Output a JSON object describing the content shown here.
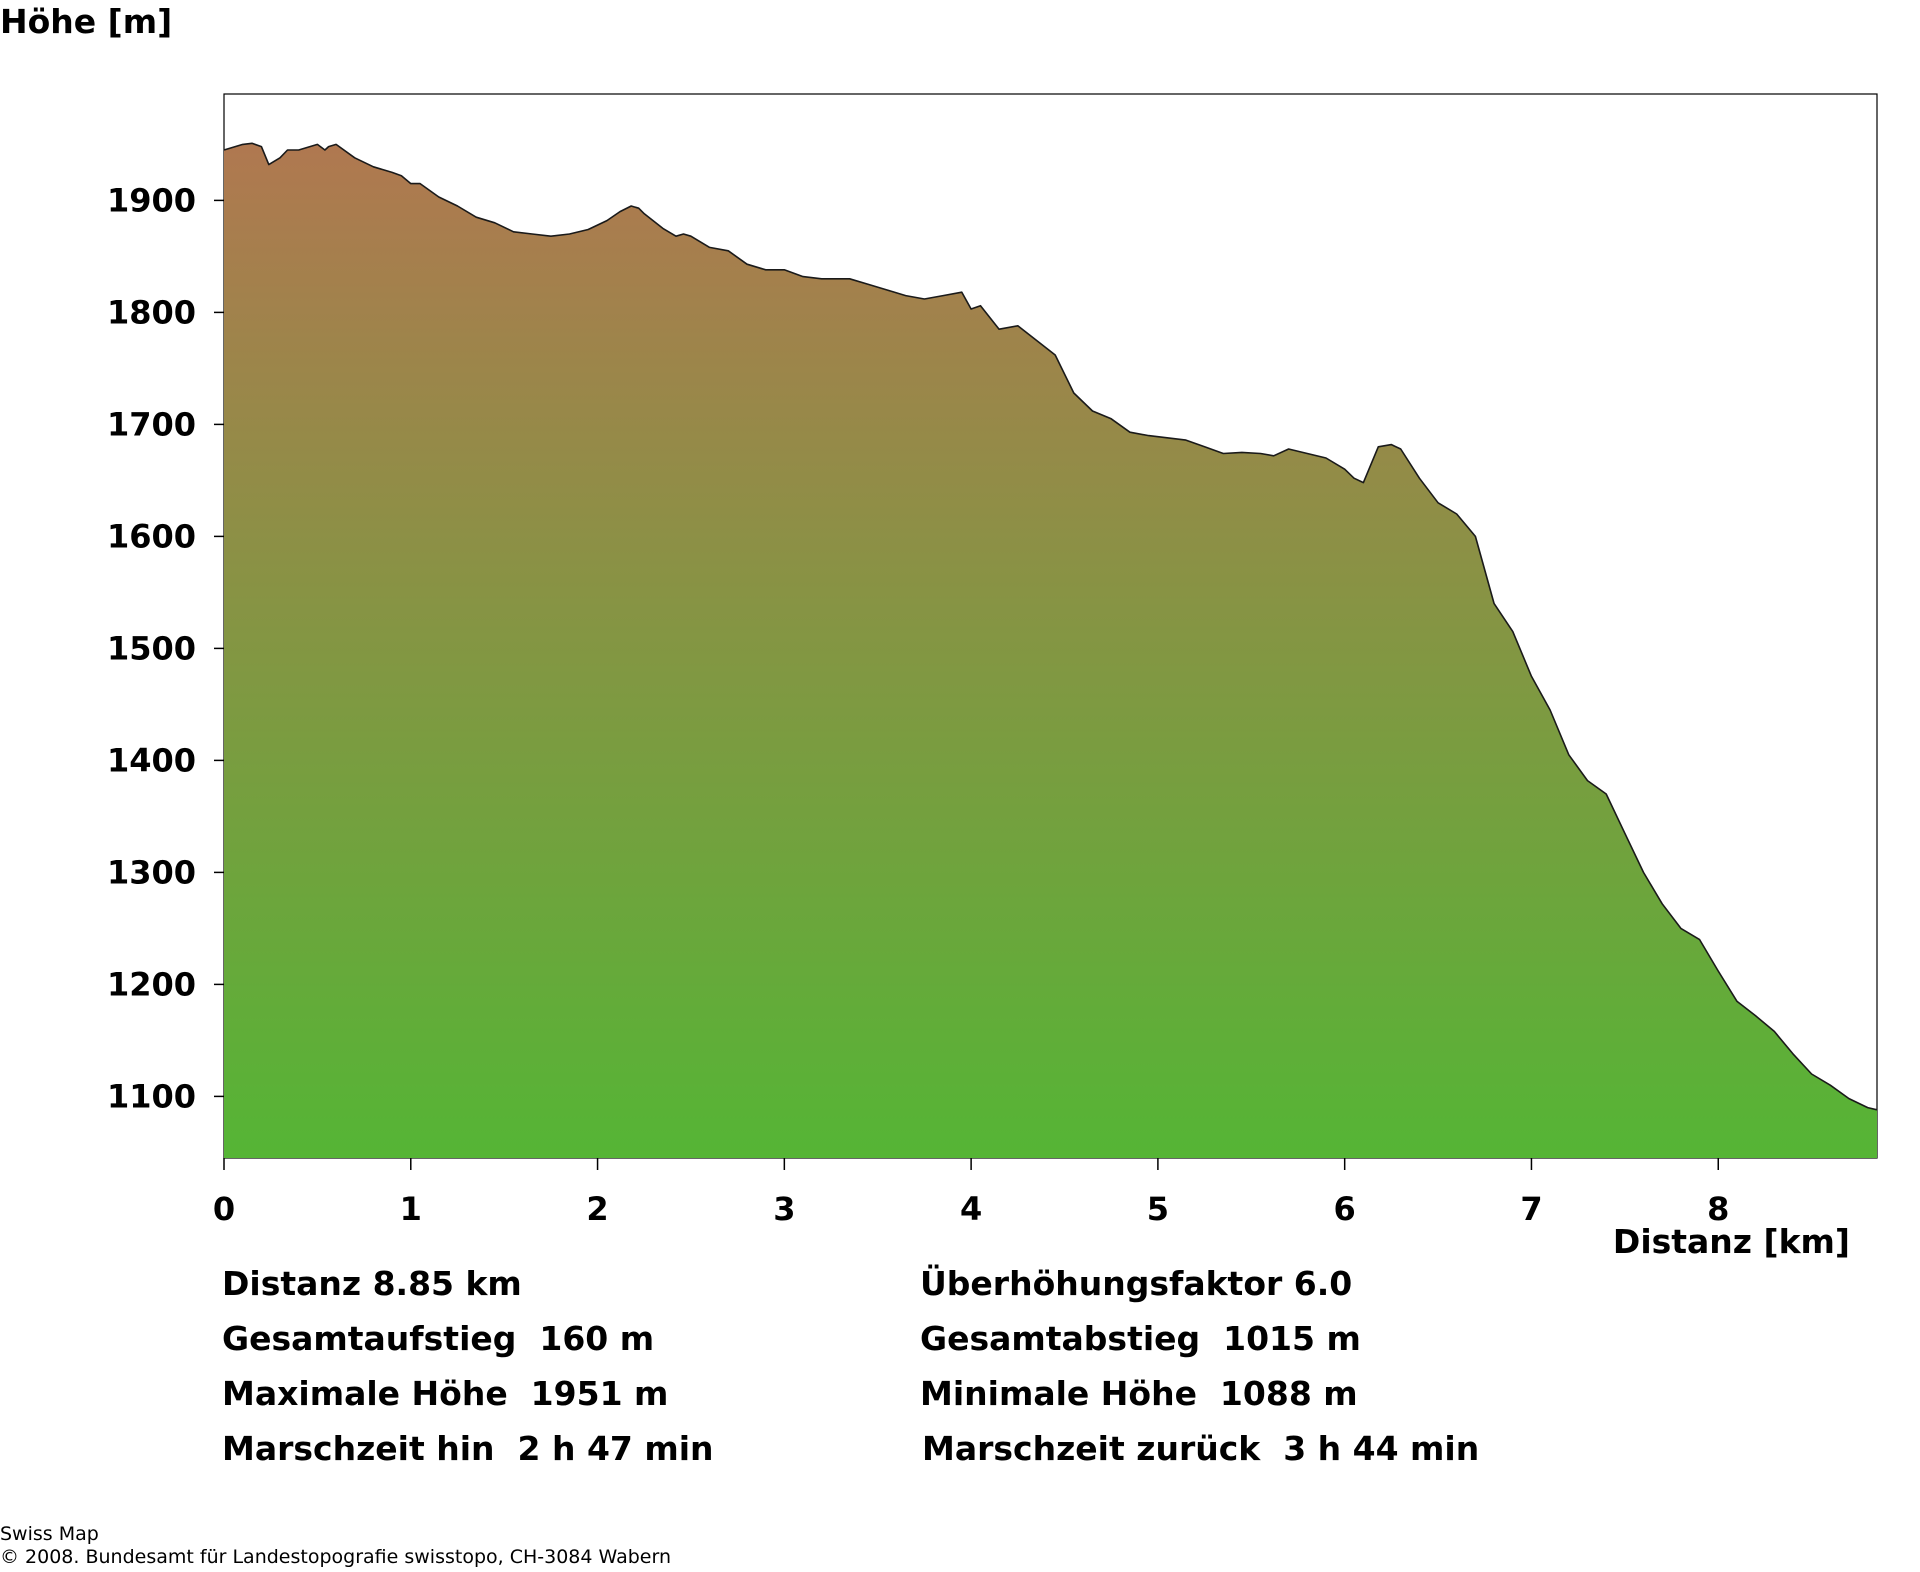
{
  "chart_data": {
    "type": "area",
    "ylabel": "Höhe [m]",
    "xlabel": "Distanz [km]",
    "xlim": [
      0,
      8.85
    ],
    "ylim": [
      1045,
      1995
    ],
    "x_ticks": [
      0,
      1,
      2,
      3,
      4,
      5,
      6,
      7,
      8
    ],
    "y_ticks": [
      1100,
      1200,
      1300,
      1400,
      1500,
      1600,
      1700,
      1800,
      1900
    ],
    "grid": false,
    "colors": {
      "top": "#b07850",
      "bottom": "#55b535",
      "outline": "#1a1a1a"
    },
    "series": [
      {
        "x": [
          0,
          0.1,
          0.15,
          0.2,
          0.24,
          0.3,
          0.34,
          0.4,
          0.5,
          0.54,
          0.56,
          0.6,
          0.7,
          0.8,
          0.9,
          0.95,
          1.0,
          1.05,
          1.15,
          1.25,
          1.35,
          1.45,
          1.55,
          1.65,
          1.75,
          1.85,
          1.95,
          2.05,
          2.12,
          2.18,
          2.22,
          2.25,
          2.35,
          2.42,
          2.46,
          2.5,
          2.6,
          2.7,
          2.8,
          2.9,
          3.0,
          3.1,
          3.2,
          3.35,
          3.45,
          3.55,
          3.65,
          3.75,
          3.85,
          3.95,
          4.0,
          4.05,
          4.15,
          4.25,
          4.35,
          4.45,
          4.55,
          4.65,
          4.75,
          4.85,
          4.95,
          5.05,
          5.15,
          5.25,
          5.35,
          5.45,
          5.55,
          5.62,
          5.7,
          5.8,
          5.9,
          6.0,
          6.05,
          6.1,
          6.18,
          6.25,
          6.3,
          6.4,
          6.5,
          6.6,
          6.7,
          6.8,
          6.9,
          7.0,
          7.1,
          7.2,
          7.3,
          7.4,
          7.5,
          7.6,
          7.7,
          7.8,
          7.9,
          8.0,
          8.1,
          8.2,
          8.3,
          8.4,
          8.5,
          8.6,
          8.7,
          8.8,
          8.85
        ],
        "values": [
          1945,
          1950,
          1951,
          1948,
          1932,
          1938,
          1945,
          1945,
          1950,
          1945,
          1948,
          1950,
          1938,
          1930,
          1925,
          1922,
          1915,
          1915,
          1903,
          1895,
          1885,
          1880,
          1872,
          1870,
          1868,
          1870,
          1874,
          1882,
          1890,
          1895,
          1893,
          1888,
          1875,
          1868,
          1870,
          1868,
          1858,
          1855,
          1843,
          1838,
          1838,
          1832,
          1830,
          1830,
          1825,
          1820,
          1815,
          1812,
          1815,
          1818,
          1803,
          1806,
          1785,
          1788,
          1775,
          1762,
          1728,
          1712,
          1705,
          1693,
          1690,
          1688,
          1686,
          1680,
          1674,
          1675,
          1674,
          1672,
          1678,
          1674,
          1670,
          1660,
          1652,
          1648,
          1680,
          1682,
          1678,
          1652,
          1630,
          1620,
          1600,
          1540,
          1515,
          1475,
          1445,
          1405,
          1382,
          1370,
          1335,
          1300,
          1272,
          1250,
          1240,
          1212,
          1185,
          1172,
          1158,
          1138,
          1120,
          1110,
          1098,
          1090,
          1088
        ]
      }
    ]
  },
  "stats": {
    "distance": "Distanz 8.85 km",
    "exaggeration": "Überhöhungsfaktor 6.0",
    "ascent": "Gesamtaufstieg  160 m",
    "descent": "Gesamtabstieg  1015 m",
    "max_height": "Maximale Höhe  1951 m",
    "min_height": "Minimale Höhe  1088 m",
    "time_there": "Marschzeit hin  2 h 47 min",
    "time_back": "Marschzeit zurück  3 h 44 min"
  },
  "footer": {
    "line1": "Swiss Map",
    "line2": "© 2008. Bundesamt für Landestopografie swisstopo, CH-3084 Wabern"
  }
}
